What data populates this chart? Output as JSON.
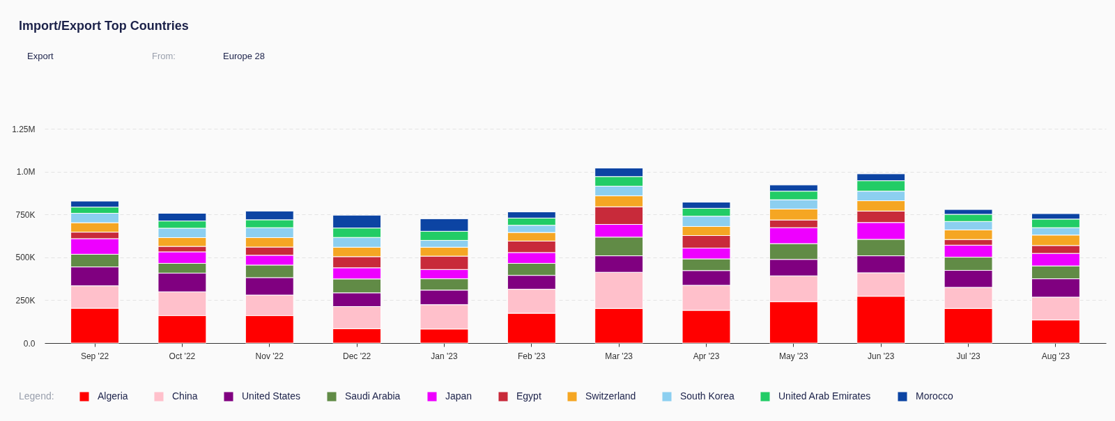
{
  "chart_data": {
    "type": "bar",
    "title": "Import/Export Top Countries",
    "annotations": [
      "Export",
      "From:",
      "Europe 28"
    ],
    "categories": [
      "Sep '22",
      "Oct '22",
      "Nov '22",
      "Dec '22",
      "Jan '23",
      "Feb '23",
      "Mar '23",
      "Apr '23",
      "May '23",
      "Jun '23",
      "Jul '23",
      "Aug '23"
    ],
    "stacked": true,
    "series": [
      {
        "name": "Algeria",
        "color": "#ff0000",
        "values": [
          203000,
          160000,
          160000,
          84000,
          82000,
          174000,
          202000,
          191000,
          241000,
          273000,
          202000,
          135000
        ]
      },
      {
        "name": "China",
        "color": "#ffc0cb",
        "values": [
          131000,
          139000,
          120000,
          129000,
          142000,
          140000,
          211000,
          146000,
          151000,
          137000,
          123000,
          133000
        ]
      },
      {
        "name": "United States",
        "color": "#800080",
        "values": [
          110000,
          109000,
          102000,
          80000,
          85000,
          81000,
          96000,
          86000,
          96000,
          99000,
          99000,
          107000
        ]
      },
      {
        "name": "Saudi Arabia",
        "color": "#618b46",
        "values": [
          74000,
          57000,
          73000,
          81000,
          66000,
          70000,
          109000,
          68000,
          92000,
          96000,
          77000,
          75000
        ]
      },
      {
        "name": "Japan",
        "color": "#ee00ff",
        "values": [
          91000,
          67000,
          57000,
          65000,
          54000,
          63000,
          74000,
          63000,
          93000,
          98000,
          70000,
          73000
        ]
      },
      {
        "name": "Egypt",
        "color": "#c82a3a",
        "values": [
          38000,
          32000,
          48000,
          65000,
          78000,
          67000,
          103000,
          73000,
          45000,
          67000,
          33000,
          46000
        ]
      },
      {
        "name": "Switzerland",
        "color": "#f5a623",
        "values": [
          55000,
          51000,
          55000,
          55000,
          52000,
          50000,
          64000,
          53000,
          64000,
          60000,
          56000,
          61000
        ]
      },
      {
        "name": "South Korea",
        "color": "#8ccff0",
        "values": [
          55000,
          55000,
          58000,
          57000,
          40000,
          42000,
          56000,
          60000,
          54000,
          56000,
          49000,
          43000
        ]
      },
      {
        "name": "United Arab Emirates",
        "color": "#22cc66",
        "values": [
          36000,
          42000,
          46000,
          55000,
          53000,
          42000,
          56000,
          46000,
          50000,
          61000,
          42000,
          50000
        ]
      },
      {
        "name": "Morocco",
        "color": "#0c44a3",
        "values": [
          35000,
          45000,
          51000,
          75000,
          73000,
          36000,
          50000,
          36000,
          36000,
          40000,
          28000,
          32000
        ]
      }
    ],
    "ylim": [
      0,
      1250000
    ],
    "yticks": [
      {
        "value": 0,
        "label": "0.0"
      },
      {
        "value": 250000,
        "label": "250K"
      },
      {
        "value": 500000,
        "label": "500K"
      },
      {
        "value": 750000,
        "label": "750K"
      },
      {
        "value": 1000000,
        "label": "1.0M"
      },
      {
        "value": 1250000,
        "label": "1.25M"
      }
    ],
    "grid": "y",
    "legend": "bottom",
    "legend_title": "Legend:"
  }
}
